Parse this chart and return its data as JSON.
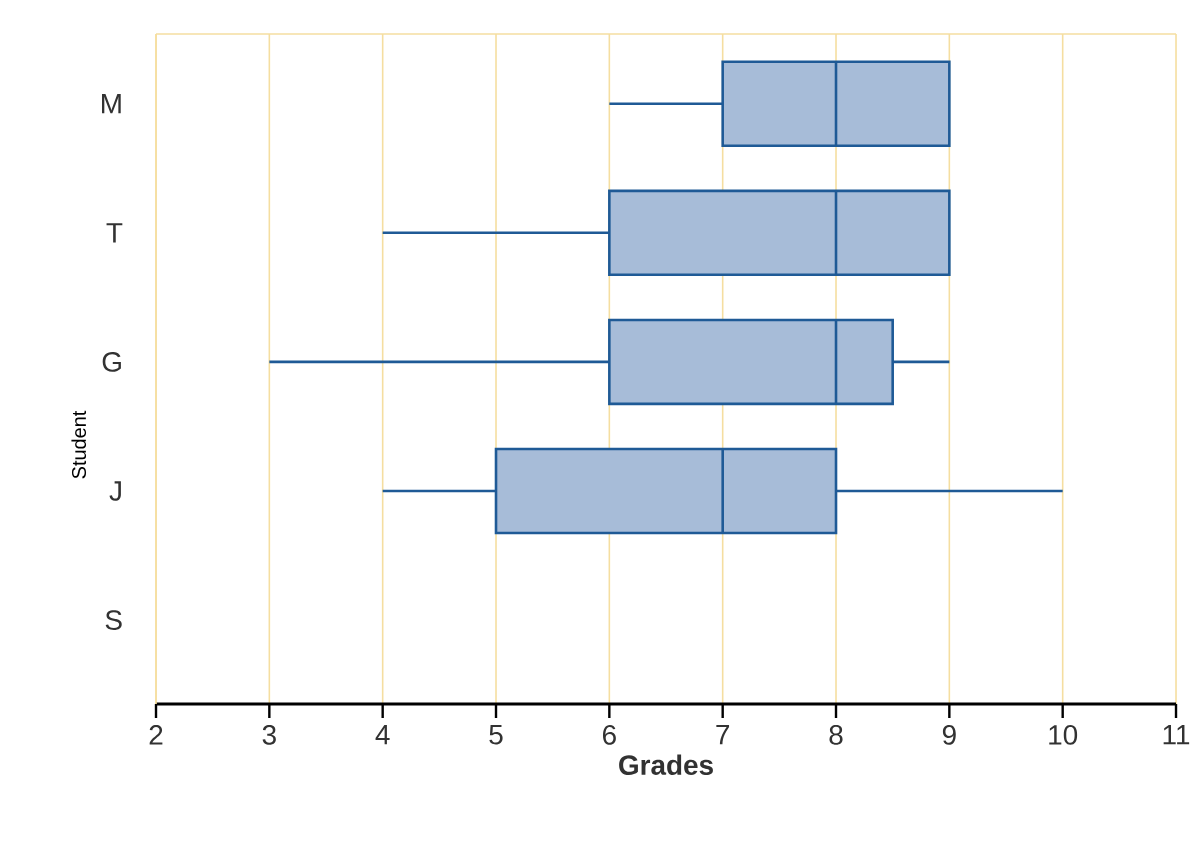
{
  "chart_data": {
    "type": "box",
    "orientation": "horizontal",
    "xlabel": "Grades",
    "ylabel": "Student",
    "categories": [
      "M",
      "T",
      "G",
      "J",
      "S"
    ],
    "boxes": [
      {
        "low": 6,
        "q1": 7,
        "median": 8,
        "q3": 9,
        "high": 9
      },
      {
        "low": 4,
        "q1": 6,
        "median": 8,
        "q3": 9,
        "high": 9
      },
      {
        "low": 3,
        "q1": 6,
        "median": 8,
        "q3": 8.5,
        "high": 9
      },
      {
        "low": 4,
        "q1": 5,
        "median": 7,
        "q3": 8,
        "high": 10
      },
      null
    ],
    "color": "#a7bcd8",
    "xlim": [
      2,
      11
    ],
    "xticks": [
      2,
      3,
      4,
      5,
      6,
      7,
      8,
      9,
      10,
      11
    ],
    "grid": "x"
  }
}
